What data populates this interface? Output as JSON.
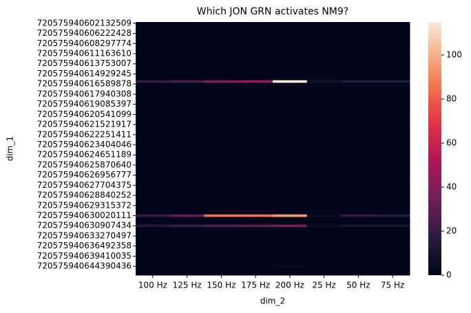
{
  "chart_data": {
    "type": "heatmap",
    "title": "Which JON GRN activates NM9?",
    "x_label": "dim_2",
    "y_label": "dim_1",
    "x_categories": [
      "100 Hz",
      "125 Hz",
      "150 Hz",
      "175 Hz",
      "200 Hz",
      "25 Hz",
      "50 Hz",
      "75 Hz"
    ],
    "y_categories": [
      "720575940602132509",
      null,
      null,
      null,
      "720575940606222428",
      null,
      null,
      null,
      "720575940608297774",
      null,
      null,
      null,
      "720575940611163610",
      null,
      null,
      null,
      "720575940613753007",
      null,
      null,
      null,
      "720575940614929245",
      null,
      null,
      null,
      "720575940616589878",
      null,
      null,
      null,
      "720575940617940308",
      null,
      null,
      null,
      "720575940619085397",
      null,
      null,
      null,
      "720575940620541099",
      null,
      null,
      null,
      "720575940621521917",
      null,
      null,
      null,
      "720575940622251411",
      null,
      null,
      null,
      "720575940623404046",
      null,
      null,
      null,
      "720575940624651189",
      null,
      null,
      null,
      "720575940625870640",
      null,
      null,
      null,
      "720575940626956777",
      null,
      null,
      null,
      "720575940627704375",
      null,
      null,
      null,
      "720575940628840252",
      null,
      null,
      null,
      "720575940629315372",
      null,
      null,
      null,
      "720575940630020111",
      null,
      null,
      null,
      "720575940630907434",
      null,
      null,
      null,
      "720575940633270497",
      null,
      null,
      null,
      "720575940636492358",
      null,
      null,
      null,
      "720575940639410035",
      null,
      null,
      null,
      "720575940644390436",
      null,
      null,
      null
    ],
    "z": [
      [
        0,
        0,
        0,
        0,
        0,
        0,
        0,
        0
      ],
      [
        0,
        0,
        0,
        0,
        0,
        0,
        0,
        0
      ],
      [
        0,
        0,
        0,
        0,
        0,
        0,
        0,
        0
      ],
      [
        0,
        0,
        0,
        0,
        0,
        0,
        0,
        0
      ],
      [
        0,
        0,
        0,
        0,
        0,
        0,
        0,
        0
      ],
      [
        0,
        0,
        0,
        0,
        0,
        0,
        0,
        0
      ],
      [
        0,
        0,
        0,
        0,
        0,
        0,
        0,
        0
      ],
      [
        0,
        0,
        0,
        0,
        0,
        0,
        0,
        0
      ],
      [
        0,
        0,
        0,
        0,
        0,
        0,
        0,
        0
      ],
      [
        0,
        0,
        0,
        0,
        0,
        0,
        0,
        0
      ],
      [
        0,
        0,
        0,
        0,
        0,
        0,
        0,
        0
      ],
      [
        0,
        0,
        0,
        0,
        0,
        0,
        0,
        0
      ],
      [
        0,
        0,
        0,
        0,
        0,
        0,
        0,
        0
      ],
      [
        0,
        0,
        0,
        0,
        0,
        0,
        0,
        0
      ],
      [
        0,
        0,
        0,
        0,
        0,
        0,
        0,
        0
      ],
      [
        0,
        0,
        0,
        0,
        0,
        0,
        0,
        0
      ],
      [
        0,
        0,
        0,
        0,
        0,
        0,
        0,
        0
      ],
      [
        0,
        0,
        0,
        0,
        0,
        0,
        0,
        0
      ],
      [
        0,
        0,
        0,
        0,
        0,
        0,
        0,
        0
      ],
      [
        0,
        0,
        0,
        0,
        0,
        0,
        0,
        0
      ],
      [
        0,
        0,
        0,
        0,
        0,
        0,
        0,
        0
      ],
      [
        0,
        0,
        0,
        0,
        0,
        0,
        0,
        0
      ],
      [
        0,
        0,
        0,
        0,
        0,
        0,
        0,
        0
      ],
      [
        20,
        25,
        40,
        45,
        115,
        8,
        15,
        15
      ],
      [
        0,
        0,
        0,
        0,
        0,
        0,
        0,
        0
      ],
      [
        0,
        0,
        0,
        0,
        0,
        0,
        0,
        0
      ],
      [
        0,
        0,
        0,
        0,
        0,
        0,
        0,
        0
      ],
      [
        0,
        0,
        0,
        0,
        0,
        0,
        0,
        0
      ],
      [
        0,
        0,
        0,
        0,
        0,
        0,
        0,
        0
      ],
      [
        0,
        0,
        0,
        0,
        0,
        0,
        0,
        0
      ],
      [
        0,
        0,
        0,
        0,
        0,
        0,
        0,
        0
      ],
      [
        0,
        0,
        0,
        0,
        0,
        0,
        0,
        0
      ],
      [
        0,
        0,
        0,
        0,
        0,
        0,
        0,
        0
      ],
      [
        0,
        0,
        0,
        0,
        0,
        0,
        0,
        0
      ],
      [
        0,
        0,
        0,
        0,
        0,
        0,
        0,
        0
      ],
      [
        0,
        0,
        0,
        0,
        0,
        0,
        0,
        0
      ],
      [
        0,
        0,
        0,
        0,
        0,
        0,
        0,
        0
      ],
      [
        0,
        0,
        0,
        0,
        0,
        0,
        0,
        0
      ],
      [
        0,
        0,
        0,
        0,
        0,
        0,
        0,
        0
      ],
      [
        0,
        0,
        0,
        0,
        0,
        0,
        0,
        0
      ],
      [
        0,
        0,
        0,
        0,
        0,
        0,
        0,
        0
      ],
      [
        0,
        0,
        0,
        0,
        0,
        0,
        0,
        0
      ],
      [
        0,
        0,
        0,
        0,
        0,
        0,
        0,
        0
      ],
      [
        0,
        0,
        0,
        0,
        0,
        0,
        0,
        0
      ],
      [
        0,
        0,
        0,
        0,
        0,
        0,
        0,
        0
      ],
      [
        0,
        0,
        0,
        0,
        0,
        0,
        0,
        0
      ],
      [
        0,
        0,
        0,
        0,
        0,
        0,
        0,
        0
      ],
      [
        0,
        0,
        0,
        0,
        0,
        0,
        0,
        0
      ],
      [
        0,
        0,
        0,
        0,
        0,
        0,
        0,
        0
      ],
      [
        0,
        0,
        0,
        0,
        0,
        0,
        0,
        0
      ],
      [
        0,
        0,
        0,
        0,
        0,
        0,
        0,
        0
      ],
      [
        0,
        0,
        0,
        0,
        0,
        0,
        0,
        0
      ],
      [
        0,
        0,
        0,
        0,
        0,
        0,
        0,
        0
      ],
      [
        0,
        0,
        0,
        0,
        0,
        0,
        0,
        0
      ],
      [
        0,
        0,
        0,
        0,
        0,
        0,
        0,
        0
      ],
      [
        0,
        0,
        0,
        0,
        0,
        0,
        0,
        0
      ],
      [
        0,
        0,
        0,
        0,
        0,
        0,
        0,
        0
      ],
      [
        0,
        0,
        0,
        0,
        0,
        0,
        0,
        0
      ],
      [
        0,
        0,
        0,
        0,
        0,
        0,
        0,
        0
      ],
      [
        0,
        0,
        0,
        0,
        0,
        0,
        0,
        0
      ],
      [
        0,
        0,
        0,
        0,
        0,
        0,
        0,
        0
      ],
      [
        0,
        0,
        0,
        0,
        0,
        0,
        0,
        0
      ],
      [
        0,
        0,
        0,
        0,
        0,
        0,
        0,
        0
      ],
      [
        0,
        0,
        0,
        0,
        0,
        0,
        0,
        0
      ],
      [
        0,
        0,
        0,
        0,
        0,
        0,
        0,
        0
      ],
      [
        0,
        0,
        0,
        0,
        0,
        0,
        0,
        0
      ],
      [
        0,
        0,
        0,
        0,
        0,
        0,
        0,
        0
      ],
      [
        0,
        0,
        0,
        0,
        0,
        0,
        0,
        0
      ],
      [
        0,
        0,
        0,
        0,
        0,
        0,
        0,
        0
      ],
      [
        0,
        0,
        0,
        0,
        0,
        0,
        0,
        0
      ],
      [
        0,
        0,
        0,
        0,
        0,
        0,
        0,
        0
      ],
      [
        0,
        0,
        0,
        0,
        0,
        0,
        0,
        0
      ],
      [
        0,
        0,
        0,
        0,
        0,
        0,
        0,
        0
      ],
      [
        0,
        0,
        0,
        0,
        0,
        0,
        0,
        0
      ],
      [
        0,
        0,
        0,
        0,
        0,
        0,
        0,
        0
      ],
      [
        0,
        0,
        0,
        0,
        0,
        0,
        0,
        0
      ],
      [
        20,
        30,
        85,
        85,
        95,
        5,
        20,
        15
      ],
      [
        0,
        0,
        0,
        0,
        0,
        0,
        0,
        0
      ],
      [
        0,
        0,
        0,
        0,
        0,
        0,
        0,
        0
      ],
      [
        0,
        0,
        0,
        0,
        0,
        0,
        0,
        0
      ],
      [
        15,
        20,
        25,
        30,
        35,
        5,
        10,
        10
      ],
      [
        0,
        0,
        0,
        0,
        0,
        0,
        0,
        0
      ],
      [
        0,
        0,
        0,
        0,
        0,
        0,
        0,
        0
      ],
      [
        0,
        0,
        0,
        0,
        0,
        0,
        0,
        0
      ],
      [
        0,
        0,
        0,
        0,
        0,
        0,
        0,
        0
      ],
      [
        0,
        0,
        0,
        0,
        0,
        0,
        0,
        0
      ],
      [
        0,
        0,
        0,
        0,
        0,
        0,
        0,
        0
      ],
      [
        0,
        0,
        0,
        0,
        0,
        0,
        0,
        0
      ],
      [
        0,
        0,
        0,
        0,
        0,
        0,
        0,
        0
      ],
      [
        0,
        0,
        0,
        0,
        0,
        0,
        0,
        0
      ],
      [
        0,
        0,
        0,
        0,
        0,
        0,
        0,
        0
      ],
      [
        0,
        0,
        0,
        0,
        0,
        0,
        0,
        0
      ],
      [
        0,
        0,
        0,
        0,
        0,
        0,
        0,
        0
      ],
      [
        0,
        0,
        0,
        0,
        0,
        0,
        0,
        0
      ],
      [
        0,
        0,
        0,
        0,
        0,
        0,
        0,
        0
      ],
      [
        0,
        0,
        0,
        0,
        0,
        0,
        0,
        0
      ],
      [
        0,
        0,
        0,
        0,
        3,
        0,
        0,
        0
      ],
      [
        0,
        0,
        0,
        0,
        0,
        0,
        0,
        0
      ],
      [
        0,
        0,
        0,
        0,
        0,
        0,
        0,
        0
      ],
      [
        0,
        0,
        0,
        0,
        0,
        0,
        0,
        0
      ]
    ],
    "colormap": "rocket",
    "clim": [
      0,
      115
    ],
    "cticks": [
      0,
      20,
      40,
      60,
      80,
      100
    ]
  }
}
